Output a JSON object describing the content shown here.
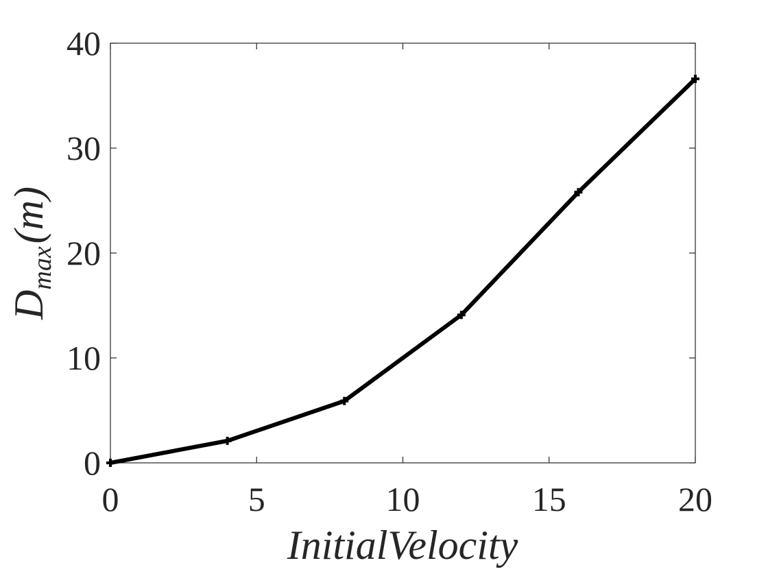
{
  "chart_data": {
    "type": "line",
    "xlabel": "InitialVelocity",
    "ylabel_main": "D",
    "ylabel_sub": "max",
    "ylabel_unit": "(m)",
    "xlim": [
      0,
      20
    ],
    "ylim": [
      0,
      40
    ],
    "xticks": [
      0,
      5,
      10,
      15,
      20
    ],
    "yticks": [
      0,
      10,
      20,
      30,
      40
    ],
    "grid": false,
    "series": [
      {
        "color": "#000000",
        "marker": "plus",
        "x": [
          0,
          4,
          8,
          12,
          16,
          20
        ],
        "y": [
          0,
          2.1,
          5.9,
          14.1,
          25.8,
          36.6
        ]
      }
    ]
  }
}
